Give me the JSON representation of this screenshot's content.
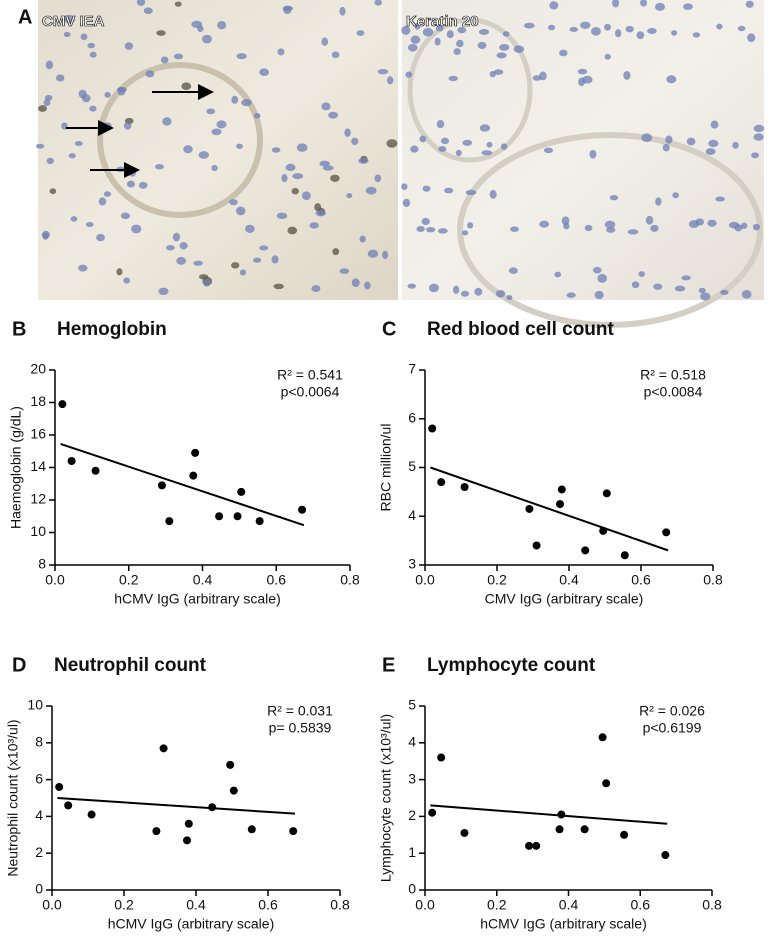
{
  "figure_panel_a": {
    "label": "A",
    "images": [
      "CMV IEA",
      "Keratin 20"
    ]
  },
  "chart_data": [
    {
      "type": "scatter",
      "panel": "B",
      "title": "Hemoglobin",
      "x_label": "hCMV IgG (arbitrary scale)",
      "y_label": "Haemoglobin (g/dL)",
      "annotations": [
        "R² = 0.541",
        "p<0.0064"
      ],
      "x": [
        0.02,
        0.045,
        0.11,
        0.29,
        0.31,
        0.375,
        0.38,
        0.445,
        0.495,
        0.505,
        0.555,
        0.67
      ],
      "values": [
        17.9,
        14.4,
        13.8,
        12.9,
        10.7,
        13.5,
        14.9,
        11.0,
        11.0,
        12.5,
        10.7,
        11.4
      ],
      "fit": {
        "x": [
          0.015,
          0.675
        ],
        "y": [
          15.45,
          10.45
        ]
      },
      "color": "#000000",
      "xlim": [
        0,
        0.8
      ],
      "xticks": [
        {
          "value": 0,
          "label": "0.0"
        },
        0.2,
        0.4,
        0.6,
        0.8
      ],
      "ylim": [
        8,
        20
      ],
      "yticks": [
        8,
        10,
        12,
        14,
        16,
        18,
        20
      ]
    },
    {
      "type": "scatter",
      "panel": "C",
      "title": "Red blood cell count",
      "x_label": "CMV IgG (arbitrary scale)",
      "y_label": "RBC million/ul",
      "annotations": [
        "R² = 0.518",
        "p<0.0084"
      ],
      "x": [
        0.02,
        0.045,
        0.11,
        0.29,
        0.31,
        0.375,
        0.38,
        0.445,
        0.495,
        0.505,
        0.555,
        0.67
      ],
      "values": [
        5.8,
        4.7,
        4.6,
        4.15,
        3.4,
        4.25,
        4.55,
        3.3,
        3.7,
        4.47,
        3.2,
        3.67
      ],
      "fit": {
        "x": [
          0.015,
          0.675
        ],
        "y": [
          5.0,
          3.3
        ]
      },
      "color": "#000000",
      "xlim": [
        0,
        0.8
      ],
      "xticks": [
        {
          "value": 0,
          "label": "0.0"
        },
        0.2,
        0.4,
        0.6,
        0.8
      ],
      "ylim": [
        3,
        7
      ],
      "yticks": [
        3,
        4,
        5,
        6,
        7
      ]
    },
    {
      "type": "scatter",
      "panel": "D",
      "title": "Neutrophil count",
      "x_label": "hCMV IgG (arbitrary scale)",
      "y_label": "Neutrophil count (x10³/ul)",
      "annotations": [
        "R² = 0.031",
        "p= 0.5839"
      ],
      "x": [
        0.02,
        0.045,
        0.11,
        0.29,
        0.31,
        0.375,
        0.38,
        0.445,
        0.495,
        0.505,
        0.555,
        0.67
      ],
      "values": [
        5.6,
        4.6,
        4.1,
        3.2,
        7.7,
        2.7,
        3.6,
        4.5,
        6.8,
        5.4,
        3.3,
        3.2
      ],
      "fit": {
        "x": [
          0.015,
          0.675
        ],
        "y": [
          5.0,
          4.15
        ]
      },
      "color": "#000000",
      "xlim": [
        0,
        0.8
      ],
      "xticks": [
        {
          "value": 0,
          "label": "0.0"
        },
        0.2,
        0.4,
        0.6,
        0.8
      ],
      "ylim": [
        0,
        10
      ],
      "yticks": [
        0,
        2,
        4,
        6,
        8,
        10
      ]
    },
    {
      "type": "scatter",
      "panel": "E",
      "title": "Lymphocyte count",
      "x_label": "hCMV IgG (arbitrary scale)",
      "y_label": "Lymphocyte count (x10³/ul)",
      "annotations": [
        "R² = 0.026",
        "p<0.6199"
      ],
      "x": [
        0.02,
        0.045,
        0.11,
        0.29,
        0.31,
        0.375,
        0.38,
        0.445,
        0.495,
        0.505,
        0.555,
        0.67
      ],
      "values": [
        2.1,
        3.6,
        1.55,
        1.2,
        1.2,
        1.65,
        2.05,
        1.65,
        4.15,
        2.9,
        1.5,
        0.95
      ],
      "fit": {
        "x": [
          0.015,
          0.675
        ],
        "y": [
          2.3,
          1.8
        ]
      },
      "color": "#000000",
      "xlim": [
        0,
        0.8
      ],
      "xticks": [
        {
          "value": 0,
          "label": "0.0"
        },
        0.2,
        0.4,
        0.6,
        0.8
      ],
      "ylim": [
        0,
        5
      ],
      "yticks": [
        0,
        1,
        2,
        3,
        4,
        5
      ]
    }
  ]
}
